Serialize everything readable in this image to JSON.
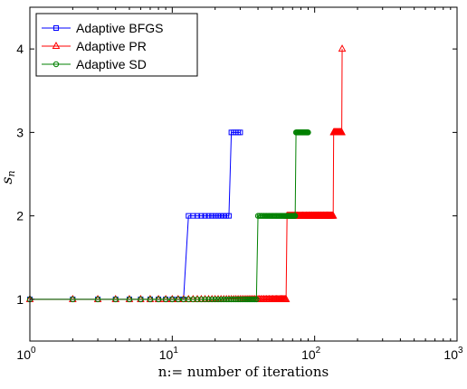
{
  "chart_data": {
    "type": "line",
    "xlabel": "n:= number of iterations",
    "ylabel": "s",
    "ylabel_subscript": "n",
    "x_scale": "log",
    "xlim": [
      1,
      1000
    ],
    "ylim": [
      0.5,
      4.5
    ],
    "x_ticks": [
      {
        "base": "10",
        "exp": "0",
        "value": 1
      },
      {
        "base": "10",
        "exp": "1",
        "value": 10
      },
      {
        "base": "10",
        "exp": "2",
        "value": 100
      },
      {
        "base": "10",
        "exp": "3",
        "value": 1000
      }
    ],
    "y_ticks": [
      {
        "label": "1",
        "value": 1
      },
      {
        "label": "2",
        "value": 2
      },
      {
        "label": "3",
        "value": 3
      },
      {
        "label": "4",
        "value": 4
      }
    ],
    "grid": false,
    "legend_position": "top-left",
    "series": [
      {
        "name": "Adaptive BFGS",
        "color": "#0000ff",
        "marker": "square",
        "segments": [
          {
            "y": 1,
            "x_from": 1,
            "x_to": 12
          },
          {
            "y": 2,
            "x_from": 13,
            "x_to": 25
          },
          {
            "y": 3,
            "x_from": 26,
            "x_to": 30
          }
        ]
      },
      {
        "name": "Adaptive PR",
        "color": "#ff0000",
        "marker": "triangle",
        "segments": [
          {
            "y": 1,
            "x_from": 1,
            "x_to": 63
          },
          {
            "y": 2,
            "x_from": 64,
            "x_to": 135
          },
          {
            "y": 3,
            "x_from": 136,
            "x_to": 155
          },
          {
            "y": 4,
            "x_from": 156,
            "x_to": 156
          }
        ]
      },
      {
        "name": "Adaptive SD",
        "color": "#008000",
        "marker": "circle",
        "segments": [
          {
            "y": 1,
            "x_from": 1,
            "x_to": 39
          },
          {
            "y": 2,
            "x_from": 40,
            "x_to": 73
          },
          {
            "y": 3,
            "x_from": 74,
            "x_to": 90
          }
        ]
      }
    ]
  }
}
